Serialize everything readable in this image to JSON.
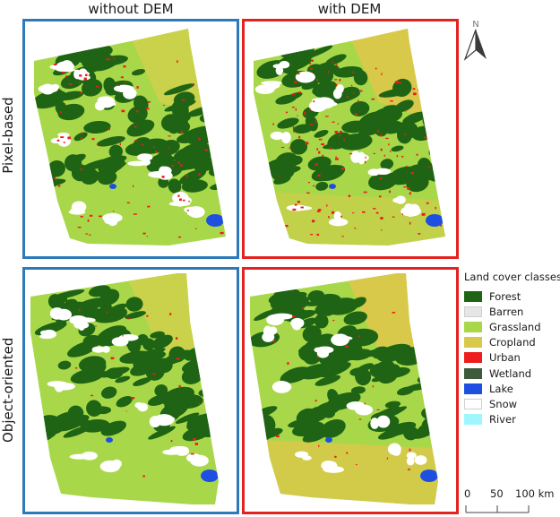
{
  "columns": [
    "without DEM",
    "with DEM"
  ],
  "rows": [
    "Pixel-based",
    "Object-oriented"
  ],
  "panels": [
    {
      "row": "Pixel-based",
      "column": "without DEM",
      "border_color": "#2e7ab8"
    },
    {
      "row": "Pixel-based",
      "column": "with DEM",
      "border_color": "#e3231f"
    },
    {
      "row": "Object-oriented",
      "column": "without DEM",
      "border_color": "#2e7ab8"
    },
    {
      "row": "Object-oriented",
      "column": "with DEM",
      "border_color": "#e3231f"
    }
  ],
  "north_arrow": {
    "label": "N",
    "icon": "north-arrow-icon"
  },
  "legend": {
    "title": "Land cover classes",
    "items": [
      {
        "label": "Forest",
        "color": "#1f6414"
      },
      {
        "label": "Barren",
        "color": "#e6e6e6"
      },
      {
        "label": "Grassland",
        "color": "#a8d84a"
      },
      {
        "label": "Cropland",
        "color": "#d9c94a"
      },
      {
        "label": "Urban",
        "color": "#ee1c1c"
      },
      {
        "label": "Wetland",
        "color": "#3d5a3a"
      },
      {
        "label": "Lake",
        "color": "#1f4fe0"
      },
      {
        "label": "Snow",
        "color": "#ffffff"
      },
      {
        "label": "River",
        "color": "#9ff6ff"
      }
    ]
  },
  "scale_bar": {
    "labels": [
      "0",
      "50",
      "100 km"
    ]
  }
}
